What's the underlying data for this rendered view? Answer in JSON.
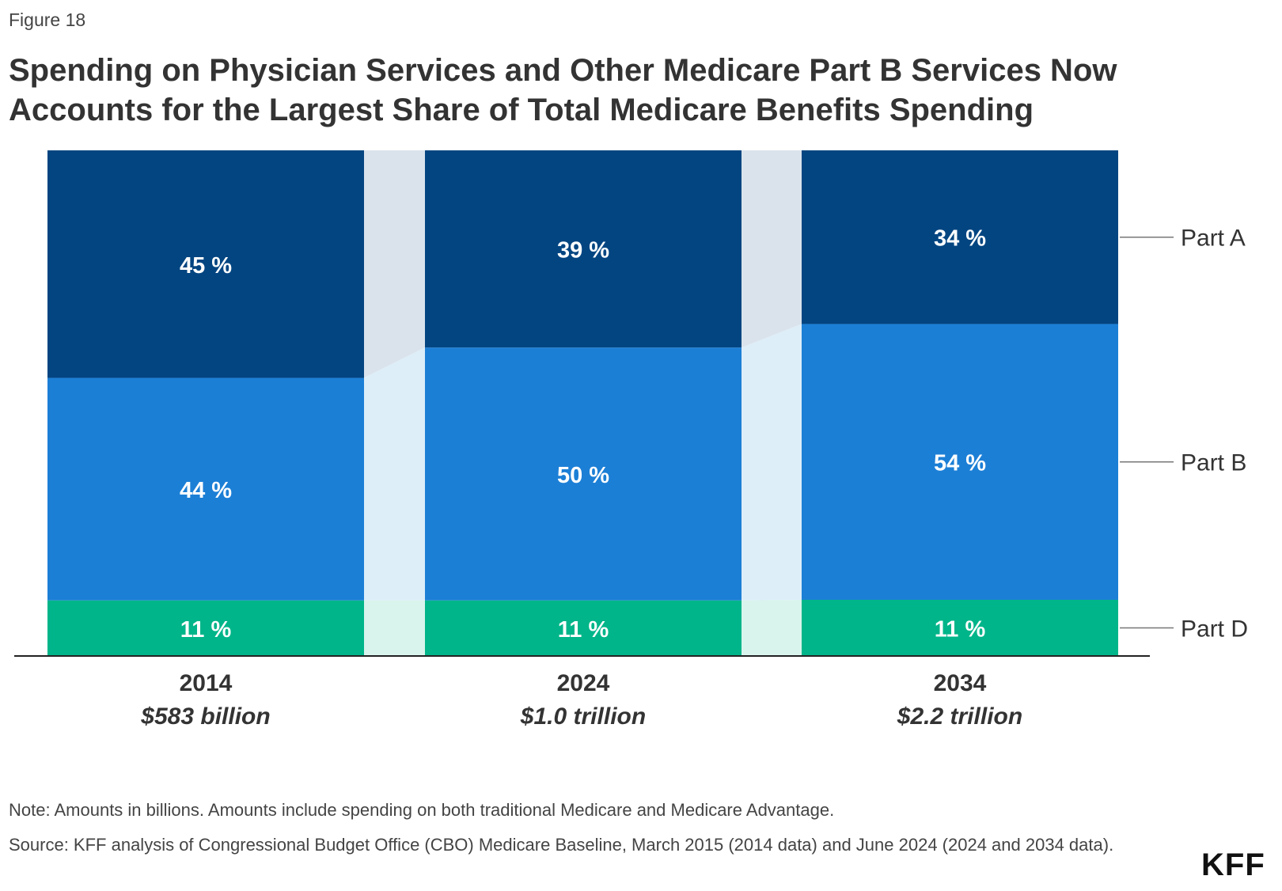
{
  "figure_label": "Figure 18",
  "title": "Spending on Physician Services and Other Medicare Part B Services Now Accounts for the Largest Share of Total Medicare Benefits Spending",
  "note": "Note: Amounts in billions. Amounts include spending on both traditional Medicare and Medicare Advantage.",
  "source": "Source: KFF analysis of Congressional Budget Office (CBO) Medicare Baseline, March 2015 (2014 data) and June 2024 (2024 and 2034 data).",
  "logo": "KFF",
  "colors": {
    "part_a": "#034581",
    "part_b": "#1c7fd6",
    "part_d": "#00b589",
    "connector_a": "#dae3ec",
    "connector_b": "#ddeef9",
    "connector_d": "#d9f4ec"
  },
  "chart_data": {
    "type": "bar",
    "stacked": true,
    "normalized_100": true,
    "categories": [
      "2014",
      "2024",
      "2034"
    ],
    "category_sublabels": [
      "$583 billion",
      "$1.0 trillion",
      "$2.2 trillion"
    ],
    "series": [
      {
        "name": "Part D",
        "values": [
          11,
          11,
          11
        ],
        "labels": [
          "11 %",
          "11 %",
          "11 %"
        ]
      },
      {
        "name": "Part B",
        "values": [
          44,
          50,
          54
        ],
        "labels": [
          "44 %",
          "50 %",
          "54 %"
        ]
      },
      {
        "name": "Part A",
        "values": [
          45,
          39,
          34
        ],
        "labels": [
          "45 %",
          "39 %",
          "34 %"
        ]
      }
    ],
    "legend": "right, inline labels",
    "ylim": [
      0,
      100
    ],
    "grid": false
  }
}
